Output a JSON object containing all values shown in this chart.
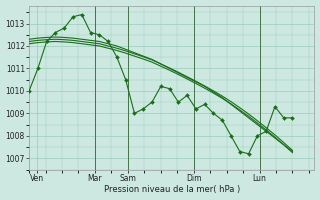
{
  "bg_color": "#cce8e0",
  "grid_color": "#99ccbb",
  "line_color": "#1a6e1a",
  "xlabel": "Pression niveau de la mer( hPa )",
  "ylim": [
    1006.5,
    1013.8
  ],
  "yticks": [
    1007,
    1008,
    1009,
    1010,
    1011,
    1012,
    1013
  ],
  "xtick_labels": [
    "Ven",
    "",
    "Mar",
    "Sam",
    "",
    "Dim",
    "",
    "Lun"
  ],
  "xtick_positions": [
    0,
    12,
    24,
    36,
    54,
    60,
    78,
    96
  ],
  "vlines_x": [
    24,
    36,
    60,
    84
  ],
  "xlim": [
    0,
    104
  ],
  "figsize": [
    3.2,
    2.0
  ],
  "dpi": 100,
  "series_zigzag": [
    1010.0,
    1011.0,
    1012.2,
    1012.6,
    1012.8,
    1013.3,
    1013.4,
    1012.6,
    1012.5,
    1012.2,
    1011.5,
    1010.5,
    1009.0,
    1009.2,
    1009.5,
    1010.2,
    1010.1,
    1009.5,
    1009.8,
    1009.2,
    1009.4,
    1009.0,
    1008.7,
    1008.0,
    1007.3,
    1007.2,
    1008.0,
    1008.2,
    1009.3,
    1008.8,
    1008.8
  ],
  "series_trend1": [
    1012.3,
    1012.35,
    1012.38,
    1012.4,
    1012.38,
    1012.35,
    1012.3,
    1012.25,
    1012.2,
    1012.1,
    1012.0,
    1011.85,
    1011.7,
    1011.55,
    1011.4,
    1011.2,
    1011.0,
    1010.8,
    1010.6,
    1010.4,
    1010.2,
    1009.95,
    1009.7,
    1009.4,
    1009.1,
    1008.8,
    1008.5,
    1008.2,
    1007.9,
    1007.6,
    1007.3
  ],
  "series_trend2": [
    1012.2,
    1012.25,
    1012.28,
    1012.3,
    1012.28,
    1012.25,
    1012.2,
    1012.15,
    1012.1,
    1012.0,
    1011.9,
    1011.78,
    1011.65,
    1011.52,
    1011.38,
    1011.2,
    1011.02,
    1010.83,
    1010.63,
    1010.43,
    1010.22,
    1010.0,
    1009.77,
    1009.52,
    1009.25,
    1008.97,
    1008.67,
    1008.36,
    1008.04,
    1007.7,
    1007.35
  ],
  "series_trend3": [
    1012.1,
    1012.15,
    1012.18,
    1012.2,
    1012.18,
    1012.15,
    1012.1,
    1012.05,
    1012.0,
    1011.9,
    1011.8,
    1011.68,
    1011.55,
    1011.42,
    1011.28,
    1011.1,
    1010.92,
    1010.73,
    1010.53,
    1010.33,
    1010.12,
    1009.9,
    1009.67,
    1009.42,
    1009.15,
    1008.87,
    1008.57,
    1008.26,
    1007.94,
    1007.6,
    1007.25
  ]
}
